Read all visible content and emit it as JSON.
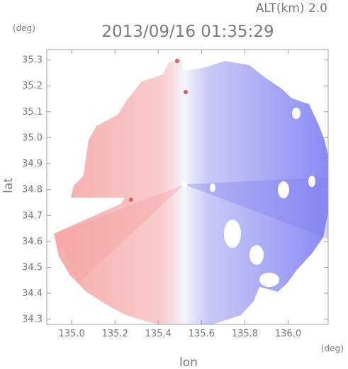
{
  "header": {
    "altitude": "ALT(km) 2.0",
    "timestamp": "2013/09/16 01:35:29"
  },
  "chart_data": {
    "type": "heatmap",
    "title": "2013/09/16 01:35:29",
    "xlabel": "lon",
    "ylabel": "lat",
    "x_unit": "(deg)",
    "y_unit": "(deg)",
    "xlim": [
      134.885,
      136.185
    ],
    "ylim": [
      34.28,
      35.34
    ],
    "x_ticks": [
      135.0,
      135.2,
      135.4,
      135.6,
      135.8,
      136.0
    ],
    "x_tick_labels": [
      "135.0",
      "135.2",
      "135.4",
      "135.6",
      "135.8",
      "136.0"
    ],
    "y_ticks": [
      34.3,
      34.4,
      34.5,
      34.6,
      34.7,
      34.8,
      34.9,
      35.0,
      35.1,
      35.2,
      35.3
    ],
    "y_tick_labels": [
      "34.3",
      "34.4",
      "34.5",
      "34.6",
      "34.7",
      "34.8",
      "34.9",
      "35.0",
      "35.1",
      "35.2",
      "35.3"
    ],
    "radar_center": [
      135.52,
      34.82
    ],
    "colors": {
      "negative": "#8a8cf4",
      "neutral": "#f4f4fb",
      "positive": "#f6a7a7",
      "axis": "#9a9a9a"
    }
  }
}
